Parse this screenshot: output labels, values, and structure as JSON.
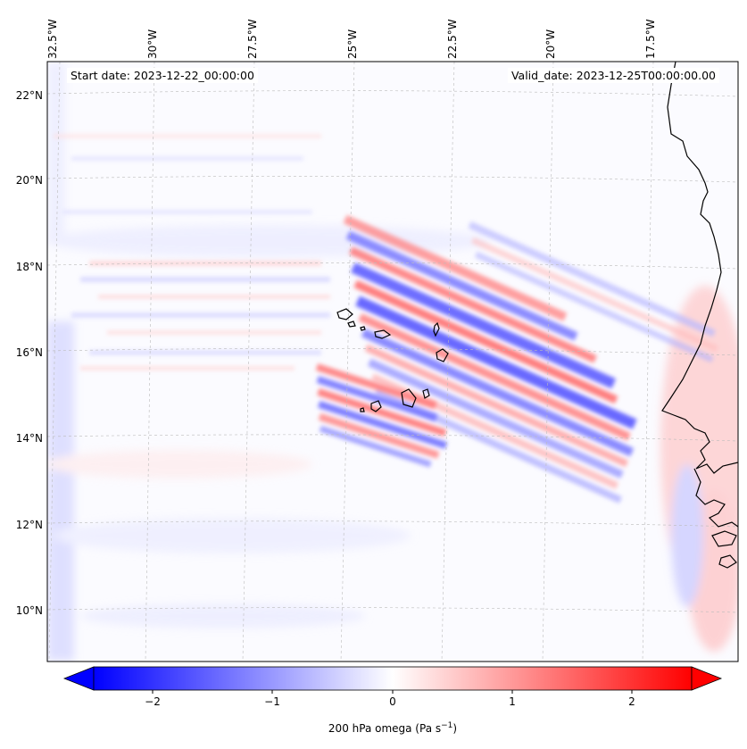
{
  "map": {
    "start_date": "Start date: 2023-12-22_00:00:00",
    "valid_date": "Valid_date: 2023-12-25T00:00:00.00",
    "lon_labels": [
      "32.5°W",
      "30°W",
      "27.5°W",
      "25°W",
      "22.5°W",
      "20°W",
      "17.5°W"
    ],
    "lat_labels": [
      "22°N",
      "20°N",
      "18°N",
      "16°N",
      "14°N",
      "12°N",
      "10°N"
    ],
    "colors": {
      "negative": "#0000ff",
      "positive": "#ff0000",
      "neutral": "#ffffff",
      "coast": "#000000"
    }
  },
  "colorbar": {
    "ticks": [
      "−2",
      "−1",
      "0",
      "1",
      "2"
    ],
    "label": "200 hPa omega (Pa s",
    "label_sup": "−1",
    "label_end": ")",
    "range": [
      -2.8,
      2.8
    ]
  }
}
